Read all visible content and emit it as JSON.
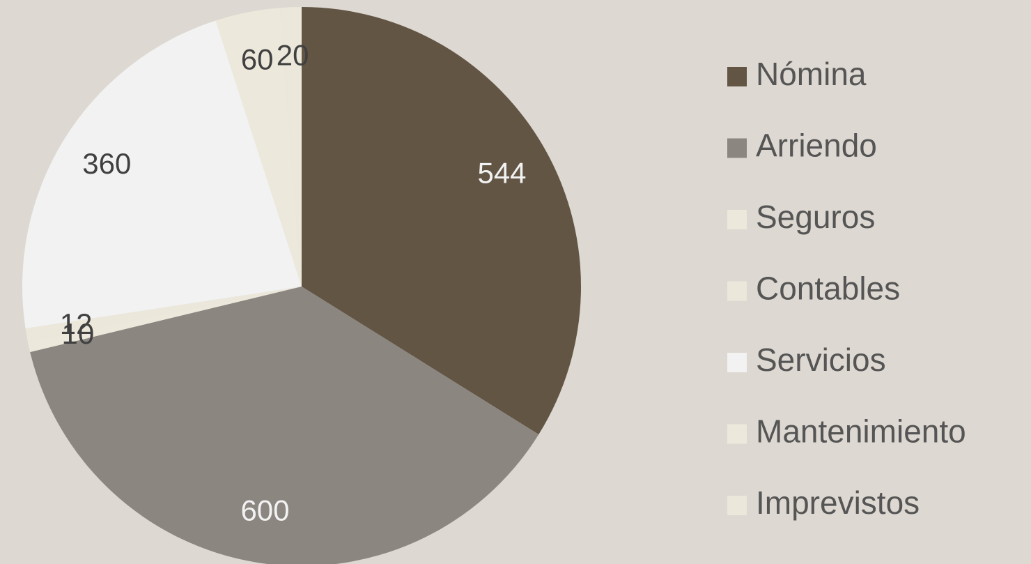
{
  "chart_data": {
    "type": "pie",
    "categories": [
      "Nómina",
      "Arriendo",
      "Seguros",
      "Contables",
      "Servicios",
      "Mantenimiento",
      "Imprevistos"
    ],
    "values": [
      544,
      600,
      10,
      12,
      360,
      60,
      20
    ],
    "colors": [
      "#625544",
      "#8b8680",
      "#ece8dc",
      "#ebe7da",
      "#f2f2f2",
      "#ece8dc",
      "#ebe7da"
    ],
    "label_colors": [
      "#f2f2f2",
      "#f2f2f2",
      "#404040",
      "#404040",
      "#404040",
      "#404040",
      "#404040"
    ],
    "legend": "right"
  }
}
